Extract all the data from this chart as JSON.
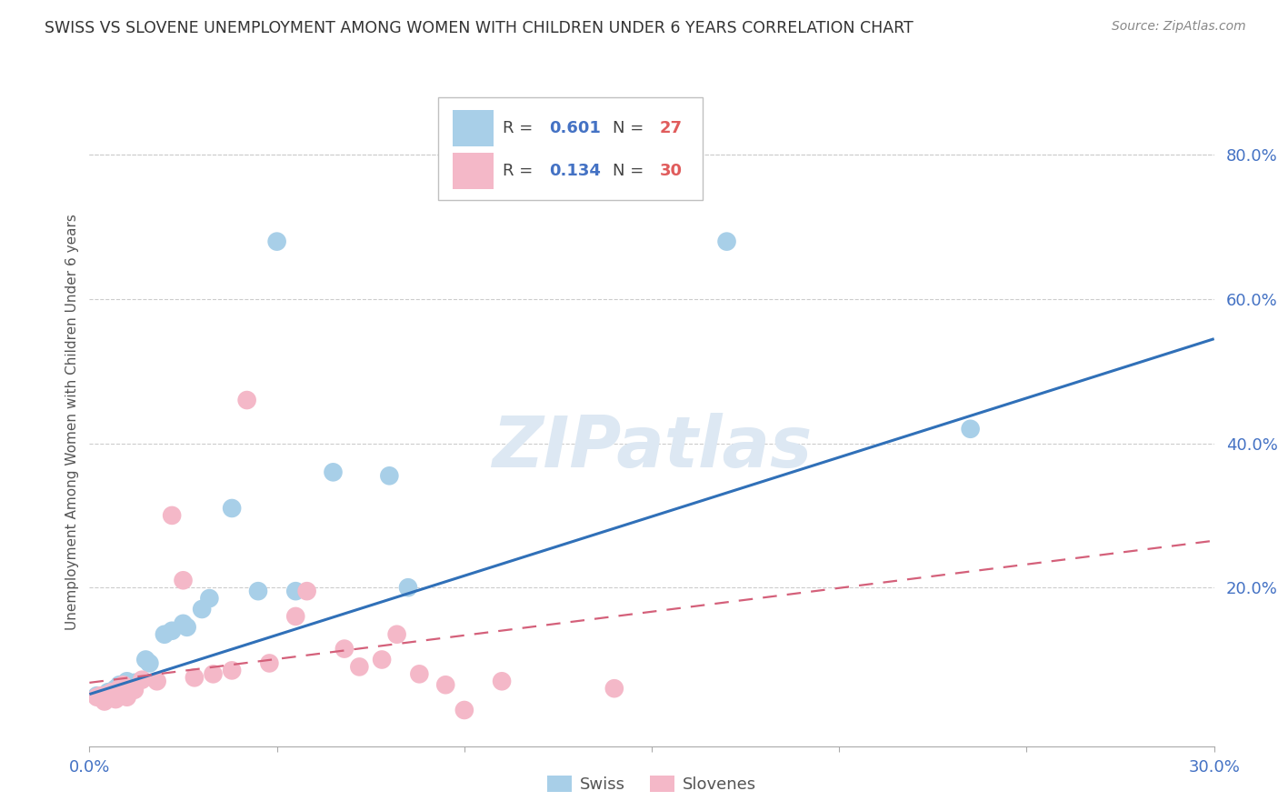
{
  "title": "SWISS VS SLOVENE UNEMPLOYMENT AMONG WOMEN WITH CHILDREN UNDER 6 YEARS CORRELATION CHART",
  "source": "Source: ZipAtlas.com",
  "ylabel": "Unemployment Among Women with Children Under 6 years",
  "xlim": [
    0.0,
    0.3
  ],
  "ylim": [
    -0.02,
    0.88
  ],
  "right_yticks": [
    0.0,
    0.2,
    0.4,
    0.6,
    0.8
  ],
  "right_ytick_labels": [
    "",
    "20.0%",
    "40.0%",
    "60.0%",
    "80.0%"
  ],
  "xticks": [
    0.0,
    0.05,
    0.1,
    0.15,
    0.2,
    0.25,
    0.3
  ],
  "xtick_labels": [
    "0.0%",
    "",
    "",
    "",
    "",
    "",
    "30.0%"
  ],
  "swiss_R": 0.601,
  "swiss_N": 27,
  "slovene_R": 0.134,
  "slovene_N": 30,
  "swiss_color": "#a8cfe8",
  "slovene_color": "#f4b8c8",
  "swiss_line_color": "#3070b8",
  "slovene_line_color": "#d4607a",
  "axis_label_color": "#4472c4",
  "legend_R_color": "#4472c4",
  "legend_N_color": "#e05c5c",
  "watermark_color": "#dde8f3",
  "swiss_x": [
    0.002,
    0.004,
    0.005,
    0.006,
    0.007,
    0.008,
    0.009,
    0.01,
    0.011,
    0.012,
    0.015,
    0.016,
    0.02,
    0.022,
    0.025,
    0.026,
    0.03,
    0.032,
    0.038,
    0.045,
    0.05,
    0.055,
    0.065,
    0.08,
    0.085,
    0.17,
    0.235
  ],
  "swiss_y": [
    0.05,
    0.048,
    0.055,
    0.052,
    0.06,
    0.065,
    0.058,
    0.07,
    0.062,
    0.068,
    0.1,
    0.095,
    0.135,
    0.14,
    0.15,
    0.145,
    0.17,
    0.185,
    0.31,
    0.195,
    0.68,
    0.195,
    0.36,
    0.355,
    0.2,
    0.68,
    0.42
  ],
  "slovene_x": [
    0.002,
    0.003,
    0.004,
    0.005,
    0.006,
    0.007,
    0.008,
    0.009,
    0.01,
    0.012,
    0.014,
    0.018,
    0.022,
    0.025,
    0.028,
    0.033,
    0.038,
    0.042,
    0.048,
    0.055,
    0.058,
    0.068,
    0.072,
    0.078,
    0.082,
    0.088,
    0.095,
    0.1,
    0.11,
    0.14
  ],
  "slovene_y": [
    0.048,
    0.05,
    0.042,
    0.052,
    0.055,
    0.045,
    0.06,
    0.065,
    0.048,
    0.058,
    0.072,
    0.07,
    0.3,
    0.21,
    0.075,
    0.08,
    0.085,
    0.46,
    0.095,
    0.16,
    0.195,
    0.115,
    0.09,
    0.1,
    0.135,
    0.08,
    0.065,
    0.03,
    0.07,
    0.06
  ],
  "swiss_trendline": [
    0.0,
    0.052,
    0.3,
    0.545
  ],
  "slovene_trendline": [
    0.0,
    0.068,
    0.3,
    0.265
  ]
}
